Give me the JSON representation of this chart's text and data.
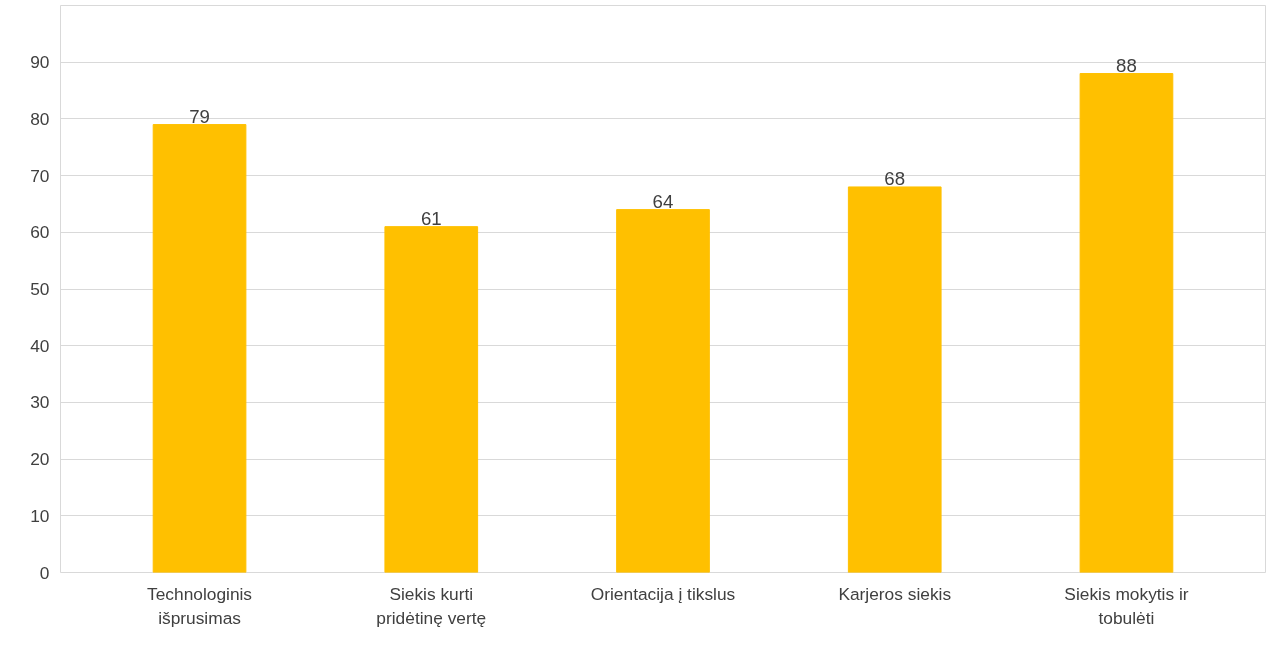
{
  "chart_data": {
    "type": "bar",
    "categories": [
      "Technologinis išprusimas",
      "Siekis kurti pridėtinę vertę",
      "Orientacija į tikslus",
      "Karjeros siekis",
      "Siekis mokytis ir tobulėti"
    ],
    "values": [
      79,
      61,
      64,
      68,
      88
    ],
    "color": "#ffc000",
    "ylim": [
      0,
      100
    ],
    "yticks": [
      0,
      10,
      20,
      30,
      40,
      50,
      60,
      70,
      80,
      90,
      {
        "value": 100,
        "label": null
      }
    ],
    "grid": "y",
    "data_labels": true
  }
}
